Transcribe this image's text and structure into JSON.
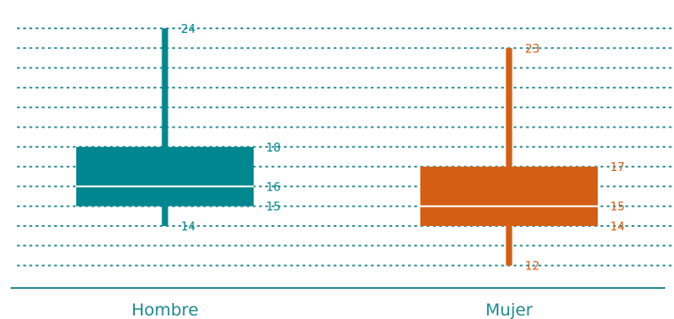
{
  "chart_data": {
    "type": "box",
    "grid": true,
    "y_range": [
      11.5,
      24.5
    ],
    "categories": [
      "Hombre",
      "Mujer"
    ],
    "boxes": [
      {
        "category": "Hombre",
        "min": 14,
        "q1": 15,
        "median": 16,
        "q3": 18,
        "max": 24,
        "color": "#00868f",
        "labels": {
          "min": "14",
          "q1": "15",
          "median": "16",
          "q3": "18",
          "max": "24"
        }
      },
      {
        "category": "Mujer",
        "min": 12,
        "q1": 14,
        "median": 15,
        "q3": 17,
        "max": 23,
        "color": "#d45f14",
        "labels": {
          "min": "12",
          "q1": "14",
          "median": "15",
          "q3": "17",
          "max": "23"
        }
      }
    ]
  },
  "colors": {
    "grid": "#2b8e95",
    "axis": "#2b8e95",
    "category_text": "#1f8a91"
  }
}
